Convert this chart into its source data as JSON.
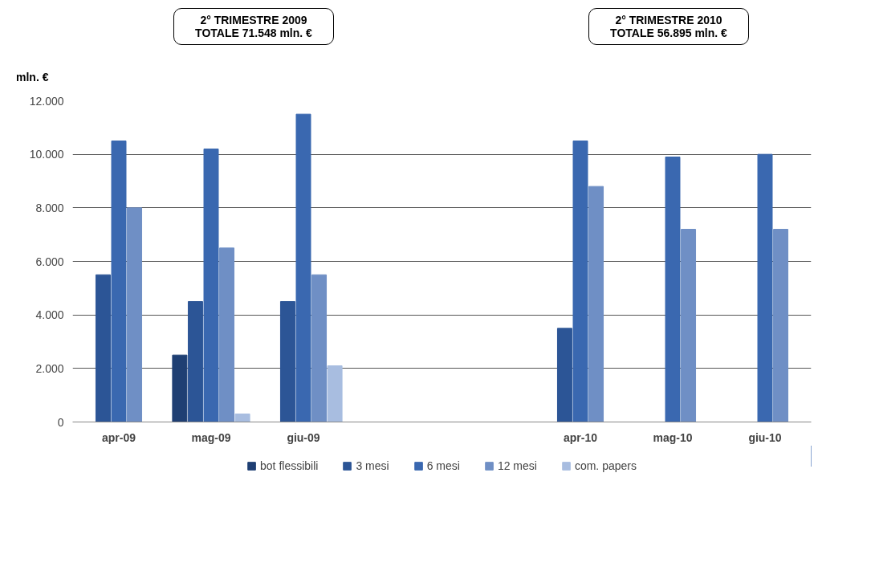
{
  "chart_data": {
    "type": "bar",
    "ylabel": "mln. €",
    "categories": [
      "apr-09",
      "mag-09",
      "giu-09",
      null,
      null,
      "apr-10",
      "mag-10",
      "giu-10"
    ],
    "series": [
      {
        "name": "bot flessibili",
        "color": "#1f3f73",
        "values": [
          null,
          2500,
          null,
          null,
          null,
          null,
          null,
          null
        ]
      },
      {
        "name": "3 mesi",
        "color": "#2c5596",
        "values": [
          5500,
          4500,
          4500,
          null,
          null,
          3500,
          null,
          null
        ]
      },
      {
        "name": "6 mesi",
        "color": "#3a68b0",
        "values": [
          10500,
          10200,
          11500,
          null,
          null,
          10500,
          9900,
          10000
        ]
      },
      {
        "name": "12 mesi",
        "color": "#6f8fc5",
        "values": [
          8000,
          6500,
          5500,
          null,
          null,
          8800,
          7200,
          7200
        ]
      },
      {
        "name": "com. papers",
        "color": "#a8bde0",
        "values": [
          null,
          300,
          2100,
          null,
          null,
          null,
          null,
          null
        ]
      }
    ],
    "ylim": [
      0,
      12000
    ],
    "yticks": [
      0,
      {
        "value": 2000,
        "label": "2.000"
      },
      {
        "value": 4000,
        "label": "4.000"
      },
      {
        "value": 6000,
        "label": "6.000"
      },
      {
        "value": 8000,
        "label": "8.000"
      },
      {
        "value": 10000,
        "label": "10.000"
      },
      {
        "value": 12000,
        "label": "12.000"
      }
    ],
    "annotations": [
      "2° TRIMESTRE 2009\nTOTALE 71.548 mln. €",
      "2° TRIMESTRE 2010\nTOTALE 56.895 mln. €"
    ],
    "grid": "y",
    "legend": "bottom"
  }
}
